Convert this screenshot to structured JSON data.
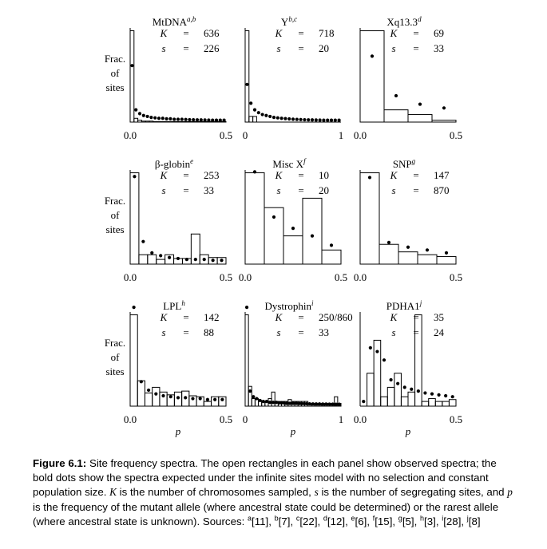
{
  "figure": {
    "ylabel_lines": [
      "Frac.",
      "of",
      "sites"
    ],
    "xlabel": "p",
    "k_symbol": "K",
    "s_symbol": "s",
    "eq": "="
  },
  "caption": {
    "label": "Figure 6.1:",
    "text_1": " Site frequency spectra. The open rectangles in each panel show observed spectra; the bold dots show the spectra expected under the infinite sites model with no selection and constant population size. ",
    "k": "K",
    "text_2": " is the number of chromosomes sampled, ",
    "s": "s",
    "text_3": " is the number of segregating sites, and ",
    "p": "p",
    "text_4": " is the frequency of the mutant allele (where ancestral state could be determined) or the rarest allele (where ancestral state is unknown). Sources: ",
    "sources": [
      {
        "sup": "a",
        "ref": "[11]"
      },
      {
        "sup": "b",
        "ref": "[7]"
      },
      {
        "sup": "c",
        "ref": "[22]"
      },
      {
        "sup": "d",
        "ref": "[12]"
      },
      {
        "sup": "e",
        "ref": "[6]"
      },
      {
        "sup": "f",
        "ref": "[15]"
      },
      {
        "sup": "g",
        "ref": "[5]"
      },
      {
        "sup": "h",
        "ref": "[3]"
      },
      {
        "sup": "i",
        "ref": "[28]"
      },
      {
        "sup": "j",
        "ref": "[8]"
      }
    ]
  },
  "chart_data": [
    {
      "type": "bar",
      "title": "MtDNA",
      "title_sup": "a,b",
      "K": "636",
      "s": "226",
      "xlim": [
        0,
        0.5
      ],
      "xticks": [
        "0.0",
        "0.5"
      ],
      "bars": [
        0.97,
        0.04,
        0.02,
        0.01,
        0.01,
        0.01,
        0.005,
        0.005,
        0.005,
        0.005,
        0.005,
        0.005,
        0.005,
        0.005,
        0.005,
        0.005,
        0.005,
        0.005,
        0.005,
        0.005,
        0.005,
        0.005,
        0.005,
        0.005,
        0.005
      ],
      "expected": [
        0.6,
        0.13,
        0.09,
        0.07,
        0.06,
        0.05,
        0.045,
        0.04,
        0.04,
        0.035,
        0.035,
        0.03,
        0.03,
        0.03,
        0.028,
        0.026,
        0.025,
        0.024,
        0.023,
        0.022,
        0.021,
        0.02,
        0.02,
        0.02,
        0.02
      ]
    },
    {
      "type": "bar",
      "title": "Y",
      "title_sup": "b,c",
      "K": "718",
      "s": "20",
      "xlim": [
        0,
        1
      ],
      "xticks": [
        "0",
        "1"
      ],
      "bars": [
        0.97,
        0.06,
        0.06,
        0.0,
        0.0,
        0.0,
        0.0,
        0.0,
        0.0,
        0.0,
        0.0,
        0.0,
        0.0,
        0.0,
        0.0,
        0.0,
        0.0,
        0.0,
        0.0,
        0.0,
        0.0,
        0.0,
        0.0,
        0.0,
        0.0
      ],
      "expected": [
        0.4,
        0.2,
        0.13,
        0.1,
        0.08,
        0.07,
        0.06,
        0.05,
        0.045,
        0.04,
        0.037,
        0.034,
        0.031,
        0.029,
        0.027,
        0.025,
        0.024,
        0.023,
        0.022,
        0.021,
        0.02,
        0.02,
        0.02,
        0.02,
        0.02
      ]
    },
    {
      "type": "bar",
      "title": "Xq13.3",
      "title_sup": "d",
      "K": "69",
      "s": "33",
      "xlim": [
        0,
        0.5
      ],
      "xticks": [
        "0.0",
        "0.5"
      ],
      "bars": [
        0.97,
        0.13,
        0.08,
        0.02
      ],
      "expected": [
        0.7,
        0.28,
        0.19,
        0.15
      ]
    },
    {
      "type": "bar",
      "title": "β-globin",
      "title_sup": "e",
      "K": "253",
      "s": "33",
      "xlim": [
        0,
        0.5
      ],
      "xticks": [
        "0.0",
        "0.5"
      ],
      "bars": [
        0.97,
        0.1,
        0.1,
        0.05,
        0.1,
        0.06,
        0.06,
        0.32,
        0.1,
        0.07,
        0.07
      ],
      "expected": [
        0.93,
        0.24,
        0.12,
        0.09,
        0.07,
        0.06,
        0.05,
        0.05,
        0.05,
        0.04,
        0.04
      ]
    },
    {
      "type": "bar",
      "title": "Misc X",
      "title_sup": "f",
      "K": "10",
      "s": "20",
      "xlim": [
        0,
        0.5
      ],
      "xticks": [
        "0.0",
        "0.5"
      ],
      "bars": [
        0.97,
        0.6,
        0.3,
        0.7,
        0.15
      ],
      "expected": [
        0.98,
        0.5,
        0.38,
        0.3,
        0.2
      ]
    },
    {
      "type": "bar",
      "title": "SNP",
      "title_sup": "g",
      "K": "147",
      "s": "870",
      "xlim": [
        0,
        0.5
      ],
      "xticks": [
        "0.0",
        "0.5"
      ],
      "bars": [
        0.97,
        0.21,
        0.13,
        0.1,
        0.08
      ],
      "expected": [
        0.92,
        0.23,
        0.18,
        0.15,
        0.12
      ]
    },
    {
      "type": "bar",
      "title": "LPL",
      "title_sup": "h",
      "K": "142",
      "s": "88",
      "xlim": [
        0,
        0.5
      ],
      "xticks": [
        "0.0",
        "0.5"
      ],
      "bars": [
        0.97,
        0.27,
        0.14,
        0.2,
        0.15,
        0.12,
        0.15,
        0.16,
        0.11,
        0.1,
        0.05,
        0.1,
        0.1
      ],
      "expected": [
        1.05,
        0.26,
        0.17,
        0.13,
        0.11,
        0.1,
        0.09,
        0.09,
        0.08,
        0.08,
        0.07,
        0.07,
        0.07
      ]
    },
    {
      "type": "bar",
      "title": "Dystrophin",
      "title_sup": "i",
      "K": "250/860",
      "s": "33",
      "xlim": [
        0,
        1
      ],
      "xticks": [
        "0",
        "1"
      ],
      "bars": [
        0.97,
        0.21,
        0.08,
        0.08,
        0.06,
        0.05,
        0.05,
        0.08,
        0.15,
        0.05,
        0.05,
        0.05,
        0.05,
        0.07,
        0.05,
        0.05,
        0.05,
        0.05,
        0.05,
        0.03,
        0.03,
        0.03,
        0.03,
        0.03,
        0.03,
        0.03,
        0.03,
        0.1,
        0.03
      ],
      "expected": [
        1.05,
        0.16,
        0.1,
        0.08,
        0.06,
        0.05,
        0.05,
        0.04,
        0.04,
        0.04,
        0.035,
        0.035,
        0.03,
        0.03,
        0.03,
        0.03,
        0.028,
        0.027,
        0.026,
        0.025,
        0.024,
        0.023,
        0.023,
        0.022,
        0.022,
        0.021,
        0.021,
        0.02,
        0.02
      ]
    },
    {
      "type": "bar",
      "title": "PDHA1",
      "title_sup": "j",
      "K": "35",
      "s": "24",
      "xlim": [
        0,
        0.5
      ],
      "xticks": [
        "0.0",
        "0.5"
      ],
      "bars": [
        0.0,
        0.35,
        0.7,
        0.1,
        0.2,
        0.35,
        0.1,
        0.15,
        0.97,
        0.05,
        0.08,
        0.05,
        0.05,
        0.07
      ],
      "expected": [
        0.05,
        0.62,
        0.58,
        0.49,
        0.28,
        0.24,
        0.2,
        0.18,
        0.16,
        0.14,
        0.13,
        0.12,
        0.11,
        0.1
      ]
    }
  ]
}
